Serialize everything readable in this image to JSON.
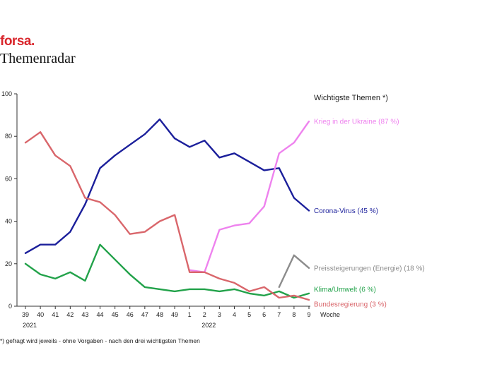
{
  "header": {
    "brand": "forsa.",
    "title": "Themenradar"
  },
  "footnote": "*) gefragt wird jeweils - ohne Vorgaben - nach den drei wichtigsten Themen",
  "chart_data": {
    "type": "line",
    "legend_title": "Wichtigste Themen *)",
    "x": [
      "39",
      "40",
      "41",
      "42",
      "43",
      "44",
      "45",
      "46",
      "47",
      "48",
      "49",
      "1",
      "2",
      "3",
      "4",
      "5",
      "6",
      "7",
      "8",
      "9"
    ],
    "x_unit_label": "Woche",
    "year_labels": [
      {
        "label": "2021",
        "at": "39"
      },
      {
        "label": "2022",
        "at": "2"
      }
    ],
    "ylim": [
      0,
      100
    ],
    "yticks": [
      0,
      20,
      40,
      60,
      80,
      100
    ],
    "grid": false,
    "series": [
      {
        "name": "Corona-Virus (45 %)",
        "color": "#1b1f9b",
        "values": [
          25,
          29,
          29,
          35,
          48,
          65,
          71,
          76,
          81,
          88,
          79,
          75,
          78,
          70,
          72,
          68,
          64,
          65,
          51,
          45
        ]
      },
      {
        "name": "Krieg in der Ukraine (87 %)",
        "color": "#ee82ee",
        "values": [
          null,
          null,
          null,
          null,
          null,
          null,
          null,
          null,
          null,
          null,
          null,
          17,
          16,
          36,
          38,
          39,
          47,
          72,
          77,
          87
        ]
      },
      {
        "name": "Preissteigerungen (Energie) (18 %)",
        "color": "#8c8c8c",
        "values": [
          null,
          null,
          null,
          null,
          null,
          null,
          null,
          null,
          null,
          null,
          null,
          null,
          null,
          null,
          null,
          null,
          null,
          9,
          24,
          18
        ]
      },
      {
        "name": "Klima/Umwelt (6 %)",
        "color": "#22a24a",
        "values": [
          20,
          15,
          13,
          16,
          12,
          29,
          22,
          15,
          9,
          8,
          7,
          8,
          8,
          7,
          8,
          6,
          5,
          7,
          4,
          6
        ]
      },
      {
        "name": "Bundesregierung (3 %)",
        "color": "#d9666b",
        "values": [
          77,
          82,
          71,
          66,
          51,
          49,
          43,
          34,
          35,
          40,
          43,
          16,
          16,
          13,
          11,
          7,
          9,
          4,
          5,
          3
        ]
      }
    ]
  }
}
